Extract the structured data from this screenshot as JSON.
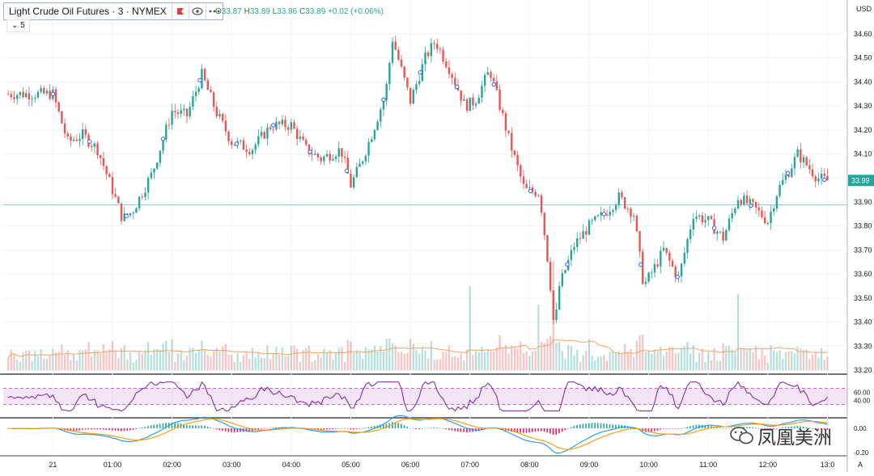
{
  "header": {
    "symbol_title": "Light Crude Oil Futures · 3 · NYMEX",
    "ohlc": [
      {
        "key": "O",
        "value": "33.87"
      },
      {
        "key": "H",
        "value": "33.89"
      },
      {
        "key": "L",
        "value": "33.86"
      },
      {
        "key": "C",
        "value": "33.89"
      }
    ],
    "change": "+0.02 (+0.06%)",
    "interval_toggle": "5",
    "flag_icon": "flag-icon",
    "eye_icon": "eye-icon",
    "more_icon": "more-icon"
  },
  "price_scale": {
    "currency": "USD",
    "last_price": "33.99",
    "last_price_color": "#26a69a"
  },
  "watermark": "凤凰美洲",
  "chart_data": {
    "type": "candlestick",
    "interval_minutes": 3,
    "x_ticks": [
      "21",
      "01:00",
      "02:00",
      "03:00",
      "04:00",
      "05:00",
      "06:00",
      "07:00",
      "08:00",
      "09:00",
      "10:00",
      "11:00",
      "12:00",
      "13:0"
    ],
    "y_ticks": [
      "34.60",
      "34.50",
      "34.40",
      "34.30",
      "34.20",
      "34.10",
      "34.00",
      "33.90",
      "33.80",
      "33.70",
      "33.60",
      "33.50",
      "33.40",
      "33.30",
      "33.20"
    ],
    "ylim": [
      33.18,
      34.67
    ],
    "grid": true,
    "price_anchors": [
      {
        "t": "00:00",
        "p": 34.35
      },
      {
        "t": "00:15",
        "p": 34.15
      },
      {
        "t": "00:30",
        "p": 34.18
      },
      {
        "t": "00:45",
        "p": 34.12
      },
      {
        "t": "01:00",
        "p": 33.95
      },
      {
        "t": "01:10",
        "p": 33.83
      },
      {
        "t": "01:20",
        "p": 33.86
      },
      {
        "t": "01:40",
        "p": 34.02
      },
      {
        "t": "02:00",
        "p": 34.28
      },
      {
        "t": "02:15",
        "p": 34.26
      },
      {
        "t": "02:30",
        "p": 34.43
      },
      {
        "t": "02:45",
        "p": 34.27
      },
      {
        "t": "03:00",
        "p": 34.15
      },
      {
        "t": "03:20",
        "p": 34.12
      },
      {
        "t": "03:40",
        "p": 34.22
      },
      {
        "t": "04:00",
        "p": 34.22
      },
      {
        "t": "04:15",
        "p": 34.12
      },
      {
        "t": "04:30",
        "p": 34.08
      },
      {
        "t": "04:50",
        "p": 34.12
      },
      {
        "t": "05:00",
        "p": 33.97
      },
      {
        "t": "05:10",
        "p": 34.06
      },
      {
        "t": "05:20",
        "p": 34.17
      },
      {
        "t": "05:35",
        "p": 34.35
      },
      {
        "t": "05:42",
        "p": 34.58
      },
      {
        "t": "06:00",
        "p": 34.32
      },
      {
        "t": "06:15",
        "p": 34.5
      },
      {
        "t": "06:25",
        "p": 34.57
      },
      {
        "t": "06:40",
        "p": 34.45
      },
      {
        "t": "06:55",
        "p": 34.3
      },
      {
        "t": "07:05",
        "p": 34.32
      },
      {
        "t": "07:20",
        "p": 34.45
      },
      {
        "t": "07:40",
        "p": 34.15
      },
      {
        "t": "07:55",
        "p": 33.95
      },
      {
        "t": "08:10",
        "p": 33.94
      },
      {
        "t": "08:20",
        "p": 33.6
      },
      {
        "t": "08:25",
        "p": 33.36
      },
      {
        "t": "08:30",
        "p": 33.55
      },
      {
        "t": "08:45",
        "p": 33.72
      },
      {
        "t": "09:00",
        "p": 33.8
      },
      {
        "t": "09:15",
        "p": 33.85
      },
      {
        "t": "09:30",
        "p": 33.92
      },
      {
        "t": "09:45",
        "p": 33.85
      },
      {
        "t": "09:55",
        "p": 33.55
      },
      {
        "t": "10:05",
        "p": 33.62
      },
      {
        "t": "10:15",
        "p": 33.7
      },
      {
        "t": "10:30",
        "p": 33.58
      },
      {
        "t": "10:45",
        "p": 33.85
      },
      {
        "t": "11:00",
        "p": 33.82
      },
      {
        "t": "11:15",
        "p": 33.75
      },
      {
        "t": "11:30",
        "p": 33.92
      },
      {
        "t": "11:45",
        "p": 33.88
      },
      {
        "t": "12:00",
        "p": 33.82
      },
      {
        "t": "12:10",
        "p": 33.95
      },
      {
        "t": "12:20",
        "p": 34.02
      },
      {
        "t": "12:30",
        "p": 34.1
      },
      {
        "t": "12:40",
        "p": 34.05
      },
      {
        "t": "12:50",
        "p": 34.0
      },
      {
        "t": "13:00",
        "p": 33.99
      }
    ],
    "volume_notable": [
      {
        "t": "07:00",
        "v": 115
      },
      {
        "t": "08:10",
        "v": 90
      },
      {
        "t": "08:25",
        "v": 150
      },
      {
        "t": "11:30",
        "v": 105
      }
    ],
    "rsi": {
      "ylim": [
        0,
        100
      ],
      "y_ticks": [
        "60.00",
        "40.00"
      ],
      "band": [
        30,
        70
      ]
    },
    "macd": {
      "y_ticks": [
        "0.00",
        "-0.20"
      ]
    }
  }
}
